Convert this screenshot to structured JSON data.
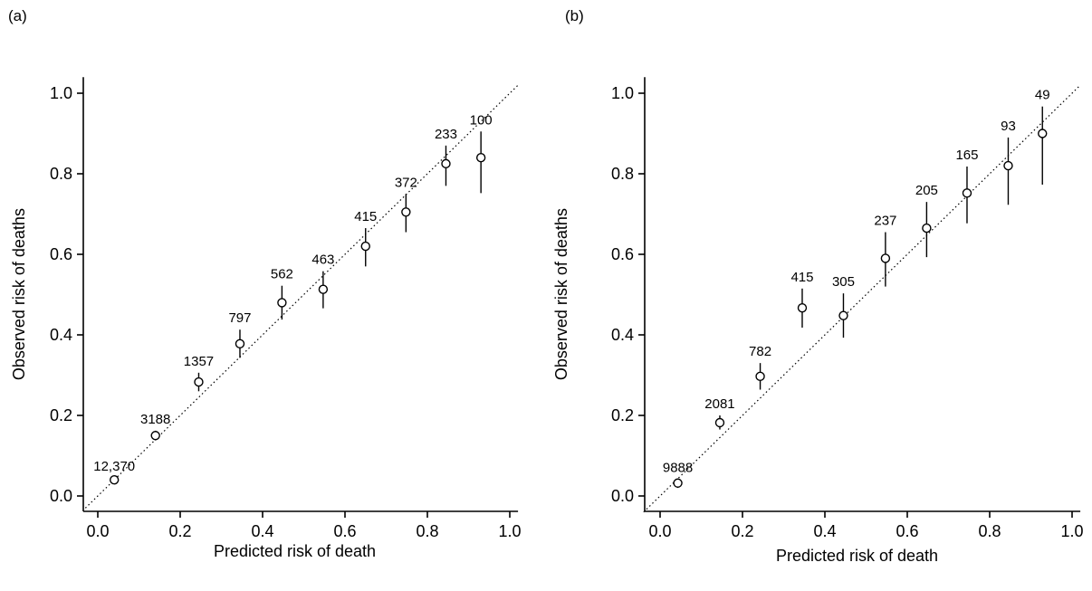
{
  "panel_labels": [
    "(a)",
    "(b)"
  ],
  "chart_data": [
    {
      "type": "scatter",
      "panel": "(a)",
      "xlabel": "Predicted risk of death",
      "ylabel": "Observed risk of deaths",
      "xlim": [
        -0.03,
        1.02
      ],
      "ylim": [
        -0.04,
        1.04
      ],
      "xticks": [
        "0.0",
        "0.2",
        "0.4",
        "0.6",
        "0.8",
        "1.0"
      ],
      "yticks": [
        "0.0",
        "0.2",
        "0.4",
        "0.6",
        "0.8",
        "1.0"
      ],
      "reference_line": "y = x (dotted)",
      "grid": false,
      "points": [
        {
          "x": 0.04,
          "y": 0.04,
          "lo": 0.035,
          "hi": 0.045,
          "n": "12,370"
        },
        {
          "x": 0.14,
          "y": 0.15,
          "lo": 0.138,
          "hi": 0.162,
          "n": "3188"
        },
        {
          "x": 0.245,
          "y": 0.283,
          "lo": 0.26,
          "hi": 0.306,
          "n": "1357"
        },
        {
          "x": 0.345,
          "y": 0.378,
          "lo": 0.343,
          "hi": 0.413,
          "n": "797"
        },
        {
          "x": 0.447,
          "y": 0.48,
          "lo": 0.438,
          "hi": 0.522,
          "n": "562"
        },
        {
          "x": 0.547,
          "y": 0.513,
          "lo": 0.466,
          "hi": 0.558,
          "n": "463"
        },
        {
          "x": 0.65,
          "y": 0.62,
          "lo": 0.57,
          "hi": 0.665,
          "n": "415"
        },
        {
          "x": 0.748,
          "y": 0.705,
          "lo": 0.655,
          "hi": 0.75,
          "n": "372"
        },
        {
          "x": 0.845,
          "y": 0.825,
          "lo": 0.77,
          "hi": 0.87,
          "n": "233"
        },
        {
          "x": 0.93,
          "y": 0.84,
          "lo": 0.752,
          "hi": 0.905,
          "n": "100"
        }
      ]
    },
    {
      "type": "scatter",
      "panel": "(b)",
      "xlabel": "Predicted risk of death",
      "ylabel": "Observed risk of deaths",
      "xlim": [
        -0.04,
        1.02
      ],
      "ylim": [
        -0.04,
        1.04
      ],
      "xticks": [
        "0.0",
        "0.2",
        "0.4",
        "0.6",
        "0.8",
        "1.0"
      ],
      "yticks": [
        "0.0",
        "0.2",
        "0.4",
        "0.6",
        "0.8",
        "1.0"
      ],
      "reference_line": "y = x (dotted)",
      "grid": false,
      "points": [
        {
          "x": 0.043,
          "y": 0.032,
          "lo": 0.02,
          "hi": 0.042,
          "n": "9888"
        },
        {
          "x": 0.145,
          "y": 0.182,
          "lo": 0.165,
          "hi": 0.2,
          "n": "2081"
        },
        {
          "x": 0.243,
          "y": 0.297,
          "lo": 0.264,
          "hi": 0.33,
          "n": "782"
        },
        {
          "x": 0.345,
          "y": 0.467,
          "lo": 0.418,
          "hi": 0.515,
          "n": "415"
        },
        {
          "x": 0.445,
          "y": 0.448,
          "lo": 0.393,
          "hi": 0.503,
          "n": "305"
        },
        {
          "x": 0.547,
          "y": 0.59,
          "lo": 0.52,
          "hi": 0.655,
          "n": "237"
        },
        {
          "x": 0.647,
          "y": 0.665,
          "lo": 0.593,
          "hi": 0.73,
          "n": "205"
        },
        {
          "x": 0.745,
          "y": 0.752,
          "lo": 0.677,
          "hi": 0.818,
          "n": "165"
        },
        {
          "x": 0.845,
          "y": 0.82,
          "lo": 0.723,
          "hi": 0.89,
          "n": "93"
        },
        {
          "x": 0.928,
          "y": 0.9,
          "lo": 0.773,
          "hi": 0.967,
          "n": "49"
        }
      ]
    }
  ]
}
